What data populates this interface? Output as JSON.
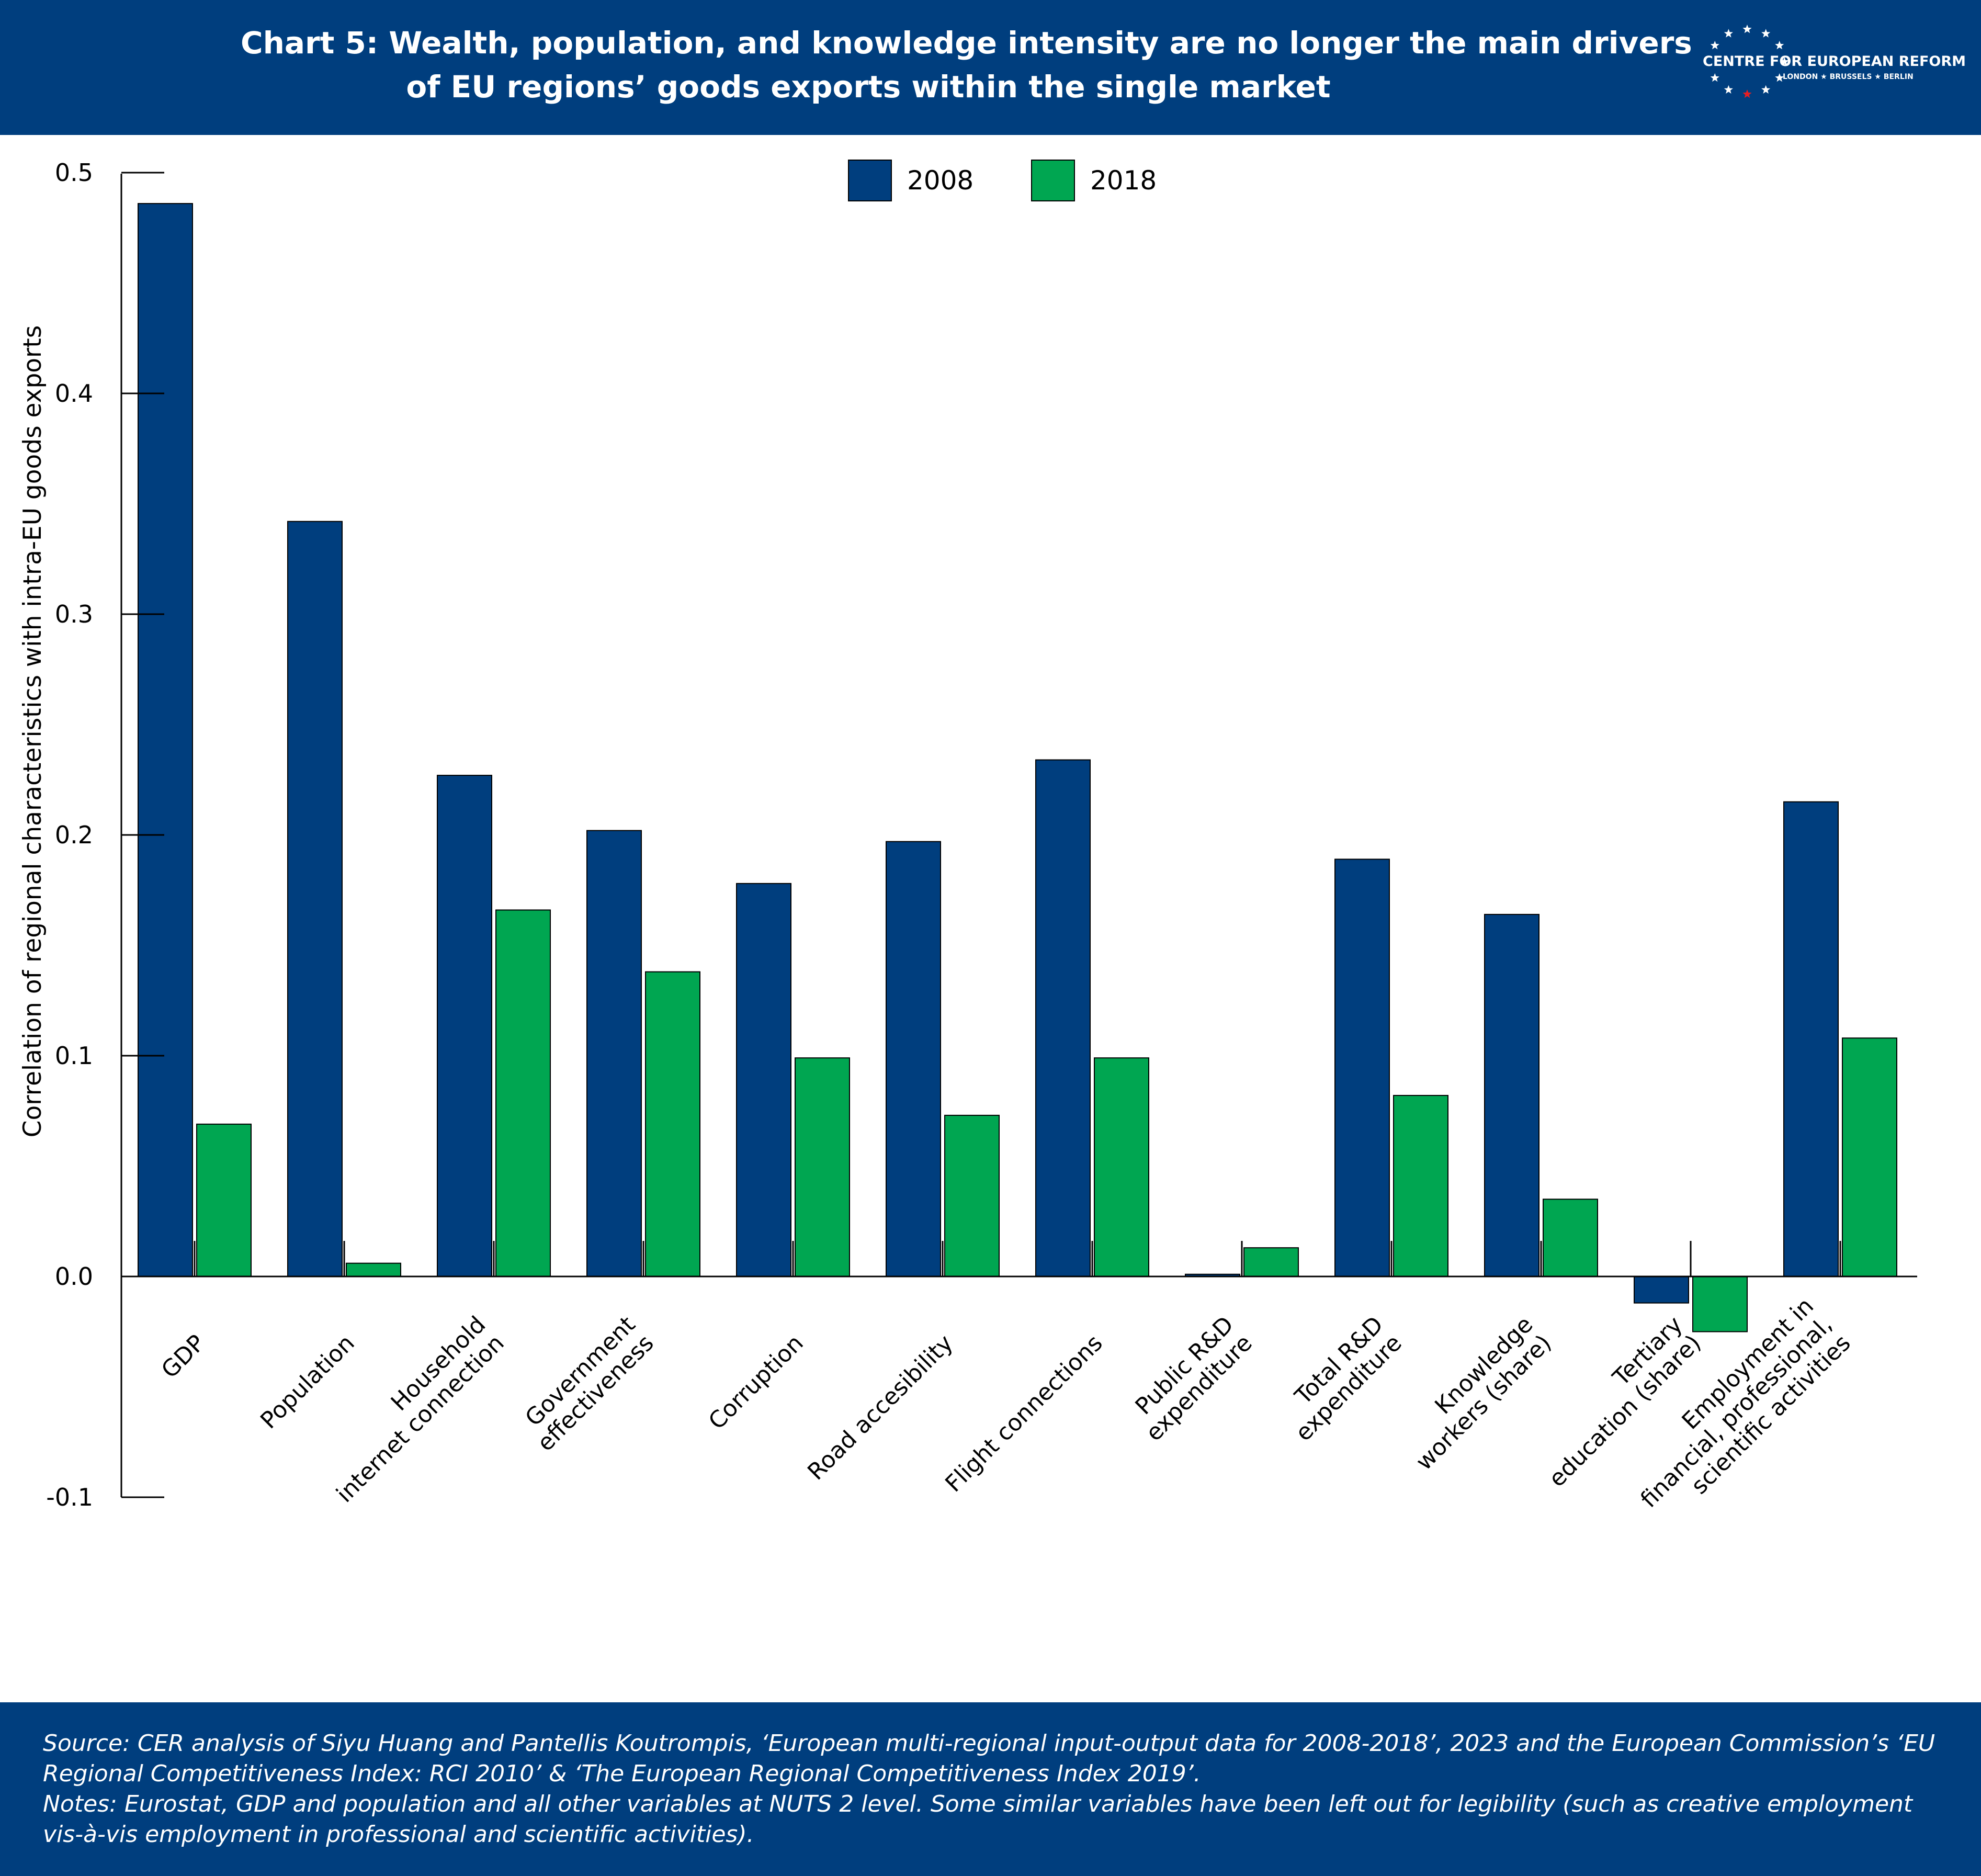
{
  "header": {
    "title_line1": "Chart 5: Wealth, population, and knowledge intensity are no longer the main drivers",
    "title_line2": "of EU regions’ goods exports within the single market",
    "logo_name": "CENTRE FOR EUROPEAN REFORM",
    "logo_cities": "LONDON ★ BRUSSELS ★ BERLIN"
  },
  "colors": {
    "header_bg": "#003E7E",
    "series_2008": "#003E7E",
    "series_2018": "#00A651",
    "logo_red_star": "#E31E24"
  },
  "chart_data": {
    "type": "bar",
    "ylabel": "Correlation of regional characteristics with intra-EU goods exports",
    "ylim": [
      -0.1,
      0.5
    ],
    "yticks": [
      "0.5",
      "0.4",
      "0.3",
      "0.2",
      "0.1",
      "0.0",
      "-0.1"
    ],
    "ytick_values": [
      0.5,
      0.4,
      0.3,
      0.2,
      0.1,
      0.0,
      -0.1
    ],
    "legend_position": "top-center",
    "categories": [
      [
        "GDP"
      ],
      [
        "Population"
      ],
      [
        "Household",
        "internet connection"
      ],
      [
        "Government",
        "effectiveness"
      ],
      [
        "Corruption"
      ],
      [
        "Road accesibility"
      ],
      [
        "Flight connections"
      ],
      [
        "Public R&D",
        "expenditure"
      ],
      [
        "Total R&D",
        "expenditure"
      ],
      [
        "Knowledge",
        "workers (share)"
      ],
      [
        "Tertiary",
        "education (share)"
      ],
      [
        "Employment in",
        "financial, professional,",
        "scientific activities"
      ]
    ],
    "series": [
      {
        "name": "2008",
        "values": [
          0.486,
          0.342,
          0.227,
          0.202,
          0.178,
          0.197,
          0.234,
          0.001,
          0.189,
          0.164,
          -0.012,
          0.215
        ]
      },
      {
        "name": "2018",
        "values": [
          0.069,
          0.006,
          0.166,
          0.138,
          0.099,
          0.073,
          0.099,
          0.013,
          0.082,
          0.035,
          -0.025,
          0.108
        ]
      }
    ]
  },
  "footer": {
    "source": "Source: CER analysis of Siyu Huang and Pantellis Koutrompis, ‘European multi-regional input-output data for 2008-2018’, 2023 and the European Commission’s ‘EU Regional Competitiveness Index: RCI 2010’ & ‘The European Regional Competitiveness Index 2019’.",
    "notes": "Notes: Eurostat, GDP and population and all other variables at NUTS 2 level. Some similar variables have been left out for legibility (such as creative employment vis-à-vis employment in professional and scientific activities)."
  }
}
